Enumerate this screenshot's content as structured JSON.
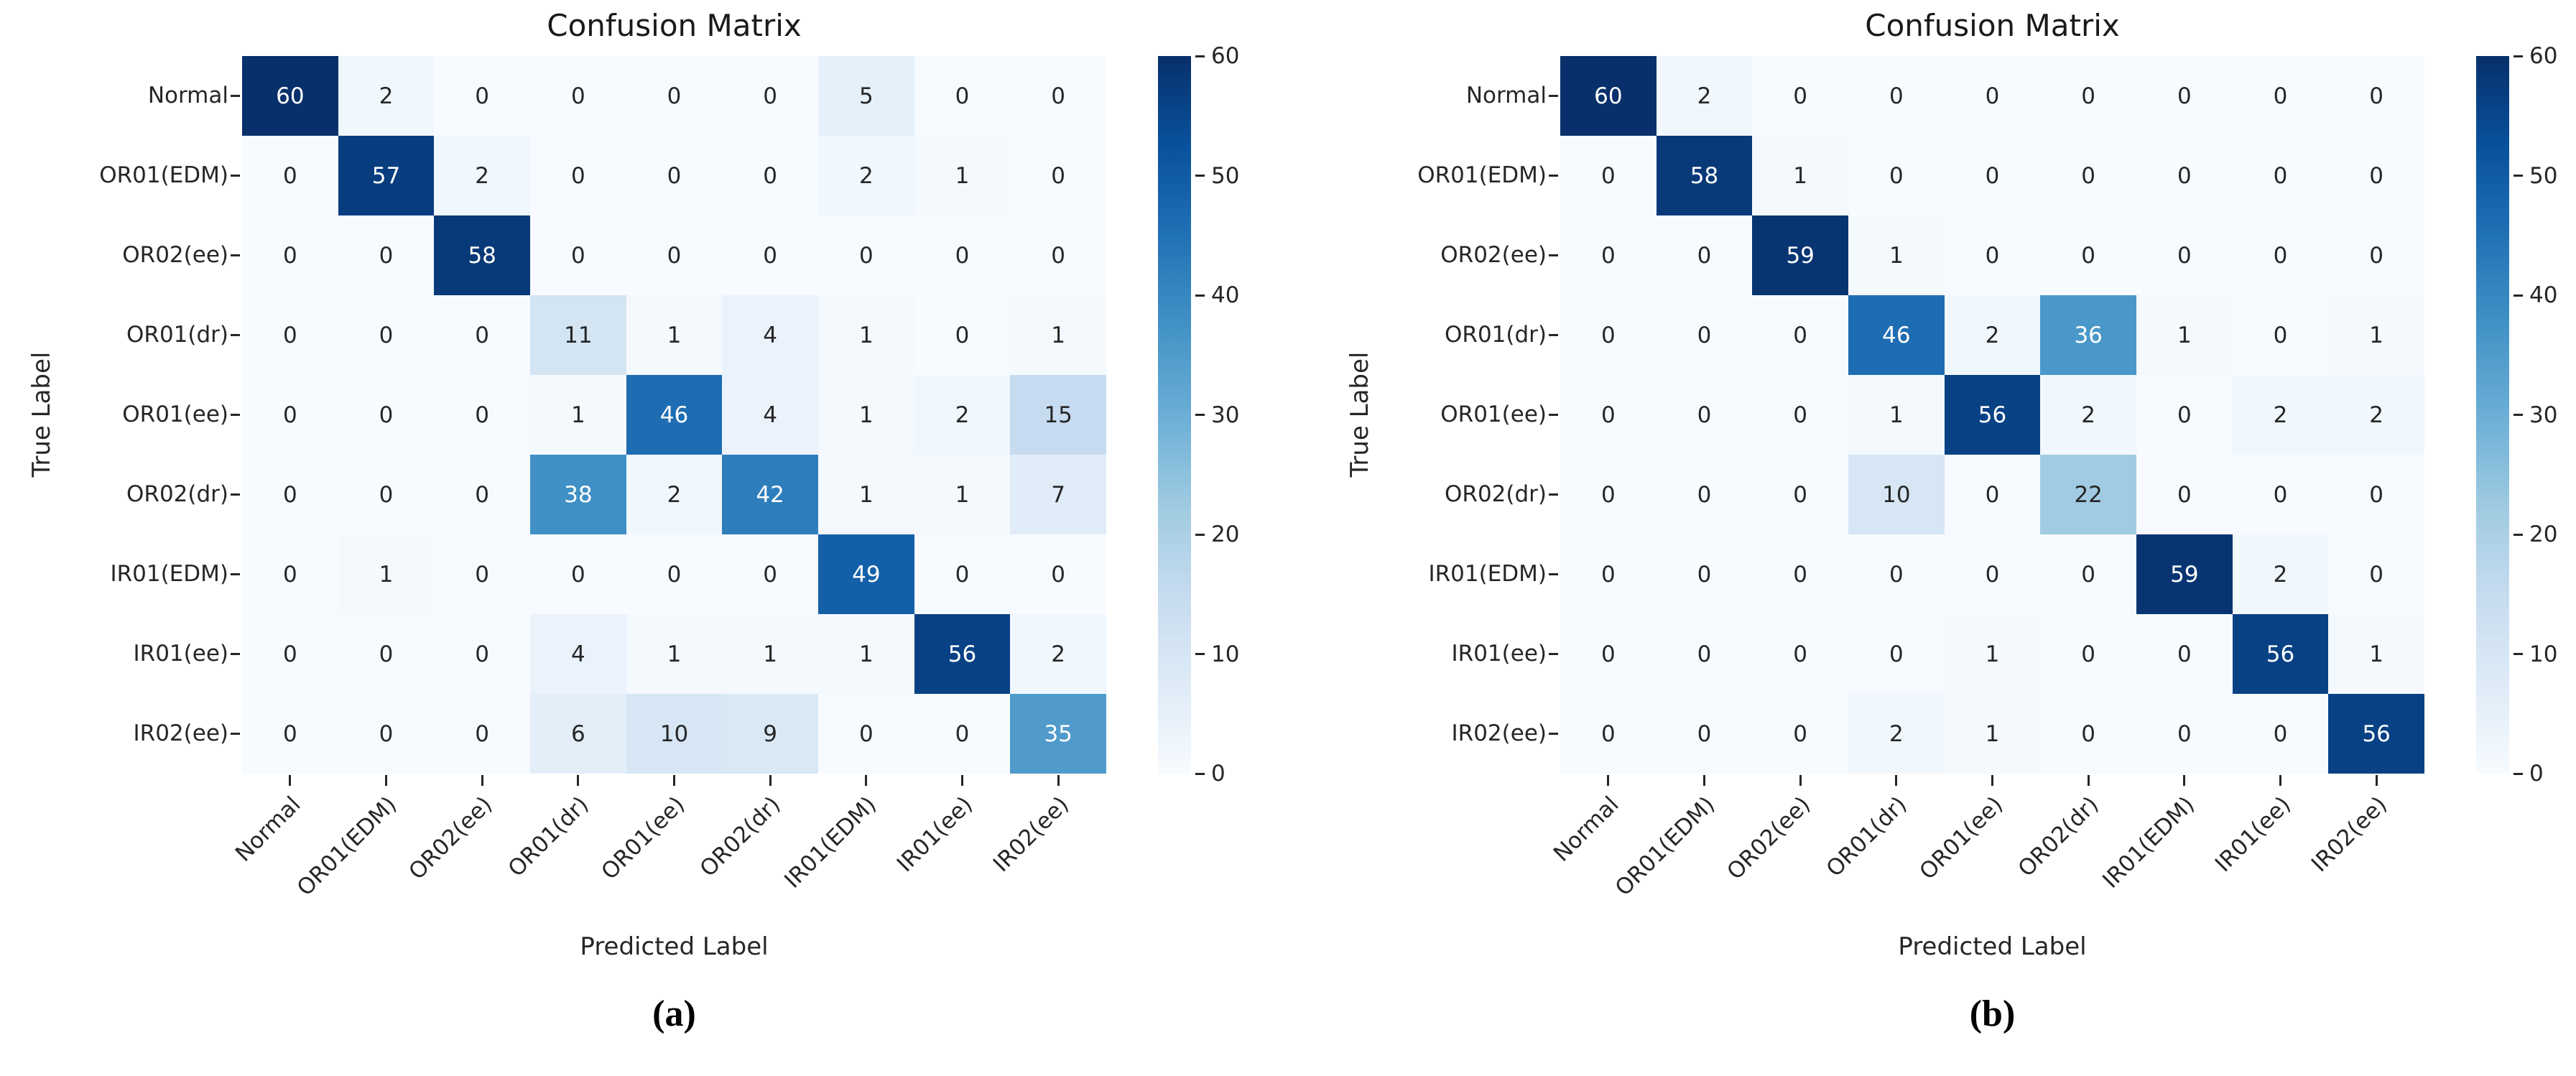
{
  "style": {
    "background": "#ffffff",
    "text_color": "#262626",
    "annot_dark_text": "#262626",
    "annot_light_text": "#ffffff",
    "colormap_stops": [
      "#f7fbff",
      "#deebf7",
      "#c6dbef",
      "#9ecae1",
      "#6baed6",
      "#4292c6",
      "#2171b5",
      "#08519c",
      "#08306b"
    ]
  },
  "chart_data": [
    {
      "type": "heatmap",
      "panel": "a",
      "title": "Confusion Matrix",
      "xlabel": "Predicted Label",
      "ylabel": "True Label",
      "caption": "(a)",
      "x_categories": [
        "Normal",
        "OR01(EDM)",
        "OR02(ee)",
        "OR01(dr)",
        "OR01(ee)",
        "OR02(dr)",
        "IR01(EDM)",
        "IR01(ee)",
        "IR02(ee)"
      ],
      "y_categories": [
        "Normal",
        "OR01(EDM)",
        "OR02(ee)",
        "OR01(dr)",
        "OR01(ee)",
        "OR02(dr)",
        "IR01(EDM)",
        "IR01(ee)",
        "IR02(ee)"
      ],
      "values": [
        [
          60,
          2,
          0,
          0,
          0,
          0,
          5,
          0,
          0
        ],
        [
          0,
          57,
          2,
          0,
          0,
          0,
          2,
          1,
          0
        ],
        [
          0,
          0,
          58,
          0,
          0,
          0,
          0,
          0,
          0
        ],
        [
          0,
          0,
          0,
          11,
          1,
          4,
          1,
          0,
          1
        ],
        [
          0,
          0,
          0,
          1,
          46,
          4,
          1,
          2,
          15
        ],
        [
          0,
          0,
          0,
          38,
          2,
          42,
          1,
          1,
          7
        ],
        [
          0,
          1,
          0,
          0,
          0,
          0,
          49,
          0,
          0
        ],
        [
          0,
          0,
          0,
          4,
          1,
          1,
          1,
          56,
          2
        ],
        [
          0,
          0,
          0,
          6,
          10,
          9,
          0,
          0,
          35
        ]
      ],
      "vmin": 0,
      "vmax": 60,
      "colorbar_ticks": [
        0,
        10,
        20,
        30,
        40,
        50,
        60
      ],
      "colormap": "Blues",
      "grid": false,
      "legend_position": "right-colorbar"
    },
    {
      "type": "heatmap",
      "panel": "b",
      "title": "Confusion Matrix",
      "xlabel": "Predicted Label",
      "ylabel": "True Label",
      "caption": "(b)",
      "x_categories": [
        "Normal",
        "OR01(EDM)",
        "OR02(ee)",
        "OR01(dr)",
        "OR01(ee)",
        "OR02(dr)",
        "IR01(EDM)",
        "IR01(ee)",
        "IR02(ee)"
      ],
      "y_categories": [
        "Normal",
        "OR01(EDM)",
        "OR02(ee)",
        "OR01(dr)",
        "OR01(ee)",
        "OR02(dr)",
        "IR01(EDM)",
        "IR01(ee)",
        "IR02(ee)"
      ],
      "values": [
        [
          60,
          2,
          0,
          0,
          0,
          0,
          0,
          0,
          0
        ],
        [
          0,
          58,
          1,
          0,
          0,
          0,
          0,
          0,
          0
        ],
        [
          0,
          0,
          59,
          1,
          0,
          0,
          0,
          0,
          0
        ],
        [
          0,
          0,
          0,
          46,
          2,
          36,
          1,
          0,
          1
        ],
        [
          0,
          0,
          0,
          1,
          56,
          2,
          0,
          2,
          2
        ],
        [
          0,
          0,
          0,
          10,
          0,
          22,
          0,
          0,
          0
        ],
        [
          0,
          0,
          0,
          0,
          0,
          0,
          59,
          2,
          0
        ],
        [
          0,
          0,
          0,
          0,
          1,
          0,
          0,
          56,
          1
        ],
        [
          0,
          0,
          0,
          2,
          1,
          0,
          0,
          0,
          56
        ]
      ],
      "vmin": 0,
      "vmax": 60,
      "colorbar_ticks": [
        0,
        10,
        20,
        30,
        40,
        50,
        60
      ],
      "colormap": "Blues",
      "grid": false,
      "legend_position": "right-colorbar"
    }
  ]
}
